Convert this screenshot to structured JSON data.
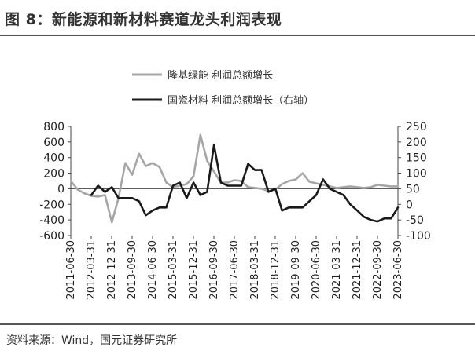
{
  "header": {
    "title": "图 8：新能源和新材料赛道龙头利润表现"
  },
  "footer": {
    "source": "资料来源：Wind，国元证券研究所"
  },
  "chart_data": {
    "type": "line",
    "legend_position": "top-center",
    "grid": false,
    "x_tick_labels": [
      "2011-06-30",
      "2012-03-31",
      "2012-12-31",
      "2013-09-30",
      "2014-06-30",
      "2015-03-31",
      "2015-12-31",
      "2016-09-30",
      "2017-06-30",
      "2018-03-31",
      "2018-12-31",
      "2019-09-30",
      "2020-06-30",
      "2021-03-31",
      "2021-12-31",
      "2022-09-30",
      "2023-06-30"
    ],
    "y_left": {
      "ticks": [
        800,
        600,
        400,
        200,
        0,
        -200,
        -400,
        -600
      ],
      "range": [
        -600,
        800
      ]
    },
    "y_right": {
      "ticks": [
        250,
        200,
        150,
        100,
        50,
        0,
        -50,
        -100
      ],
      "range": [
        -100,
        250
      ]
    },
    "series": [
      {
        "name": "隆基绿能 利润总额增长",
        "axis": "left",
        "color": "#a6a6a6",
        "x": [
          "2011-06-30",
          "2011-09-30",
          "2011-12-31",
          "2012-03-31",
          "2012-06-30",
          "2012-09-30",
          "2012-12-31",
          "2013-03-31",
          "2013-06-30",
          "2013-09-30",
          "2013-12-31",
          "2014-03-31",
          "2014-06-30",
          "2014-09-30",
          "2014-12-31",
          "2015-03-31",
          "2015-06-30",
          "2015-09-30",
          "2015-12-31",
          "2016-03-31",
          "2016-06-30",
          "2016-09-30",
          "2016-12-31",
          "2017-03-31",
          "2017-06-30",
          "2017-09-30",
          "2017-12-31",
          "2018-03-31",
          "2018-06-30",
          "2018-09-30",
          "2018-12-31",
          "2019-03-31",
          "2019-06-30",
          "2019-09-30",
          "2019-12-31",
          "2020-03-31",
          "2020-06-30",
          "2020-09-30",
          "2020-12-31",
          "2021-03-31",
          "2021-06-30",
          "2021-09-30",
          "2021-12-31",
          "2022-03-31",
          "2022-06-30",
          "2022-09-30",
          "2022-12-31",
          "2023-03-31",
          "2023-06-30"
        ],
        "values": [
          100,
          -10,
          -60,
          -90,
          -100,
          -80,
          -430,
          -120,
          330,
          180,
          450,
          290,
          330,
          280,
          80,
          20,
          40,
          60,
          160,
          690,
          360,
          220,
          80,
          80,
          110,
          100,
          20,
          10,
          0,
          -30,
          -10,
          60,
          100,
          120,
          200,
          90,
          70,
          50,
          30,
          10,
          20,
          30,
          20,
          10,
          20,
          50,
          40,
          30,
          30
        ]
      },
      {
        "name": "国瓷材料 利润总额增长（右轴）",
        "axis": "right",
        "color": "#1a1a1a",
        "x": [
          "2012-03-31",
          "2012-06-30",
          "2012-09-30",
          "2012-12-31",
          "2013-03-31",
          "2013-06-30",
          "2013-09-30",
          "2013-12-31",
          "2014-03-31",
          "2014-06-30",
          "2014-09-30",
          "2014-12-31",
          "2015-03-31",
          "2015-06-30",
          "2015-09-30",
          "2015-12-31",
          "2016-03-31",
          "2016-06-30",
          "2016-09-30",
          "2016-12-31",
          "2017-03-31",
          "2017-06-30",
          "2017-09-30",
          "2017-12-31",
          "2018-03-31",
          "2018-06-30",
          "2018-09-30",
          "2018-12-31",
          "2019-03-31",
          "2019-06-30",
          "2019-09-30",
          "2019-12-31",
          "2020-03-31",
          "2020-06-30",
          "2020-09-30",
          "2020-12-31",
          "2021-03-31",
          "2021-06-30",
          "2021-09-30",
          "2021-12-31",
          "2022-03-31",
          "2022-06-30",
          "2022-09-30",
          "2022-12-31",
          "2023-03-31",
          "2023-06-30"
        ],
        "values": [
          30,
          60,
          40,
          55,
          20,
          20,
          20,
          10,
          -35,
          -20,
          -10,
          -10,
          60,
          70,
          20,
          70,
          30,
          40,
          190,
          70,
          60,
          60,
          60,
          130,
          110,
          110,
          40,
          50,
          -20,
          -10,
          -10,
          -10,
          10,
          30,
          80,
          50,
          40,
          30,
          0,
          -20,
          -40,
          -50,
          -55,
          -45,
          -45,
          -10
        ]
      }
    ]
  }
}
